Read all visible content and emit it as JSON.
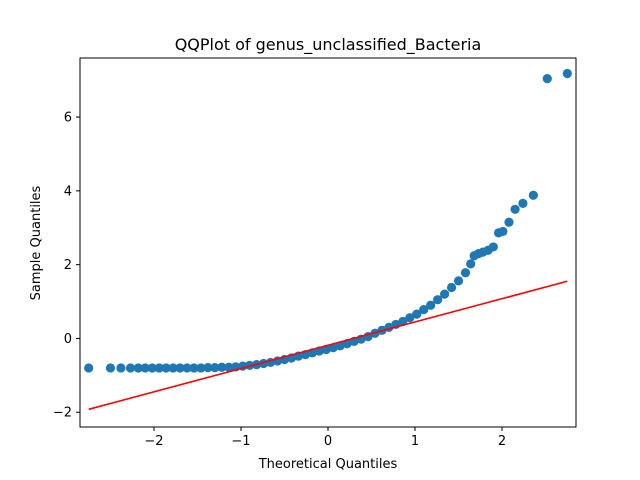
{
  "chart_data": {
    "type": "scatter",
    "title": "QQPlot of genus_unclassified_Bacteria",
    "xlabel": "Theoretical Quantiles",
    "ylabel": "Sample Quantiles",
    "xlim": [
      -2.85,
      2.85
    ],
    "ylim": [
      -2.4,
      7.6
    ],
    "xticks": [
      -2,
      -1,
      0,
      1,
      2
    ],
    "yticks": [
      -2,
      0,
      2,
      4,
      6
    ],
    "grid": false,
    "legend": "none",
    "series": [
      {
        "kind": "points",
        "color": "#1f77b4",
        "points": [
          [
            -2.75,
            -0.8
          ],
          [
            -2.5,
            -0.8
          ],
          [
            -2.38,
            -0.8
          ],
          [
            -2.27,
            -0.8
          ],
          [
            -2.18,
            -0.8
          ],
          [
            -2.1,
            -0.8
          ],
          [
            -2.02,
            -0.8
          ],
          [
            -1.94,
            -0.8
          ],
          [
            -1.86,
            -0.8
          ],
          [
            -1.78,
            -0.8
          ],
          [
            -1.7,
            -0.8
          ],
          [
            -1.62,
            -0.8
          ],
          [
            -1.54,
            -0.8
          ],
          [
            -1.46,
            -0.8
          ],
          [
            -1.38,
            -0.79
          ],
          [
            -1.3,
            -0.79
          ],
          [
            -1.22,
            -0.78
          ],
          [
            -1.14,
            -0.78
          ],
          [
            -1.06,
            -0.77
          ],
          [
            -0.98,
            -0.75
          ],
          [
            -0.9,
            -0.73
          ],
          [
            -0.82,
            -0.71
          ],
          [
            -0.74,
            -0.68
          ],
          [
            -0.66,
            -0.65
          ],
          [
            -0.58,
            -0.61
          ],
          [
            -0.5,
            -0.57
          ],
          [
            -0.42,
            -0.53
          ],
          [
            -0.34,
            -0.48
          ],
          [
            -0.26,
            -0.44
          ],
          [
            -0.18,
            -0.39
          ],
          [
            -0.1,
            -0.34
          ],
          [
            -0.02,
            -0.3
          ],
          [
            0.06,
            -0.25
          ],
          [
            0.14,
            -0.2
          ],
          [
            0.22,
            -0.14
          ],
          [
            0.3,
            -0.08
          ],
          [
            0.38,
            -0.02
          ],
          [
            0.46,
            0.05
          ],
          [
            0.54,
            0.14
          ],
          [
            0.62,
            0.22
          ],
          [
            0.7,
            0.3
          ],
          [
            0.78,
            0.38
          ],
          [
            0.86,
            0.46
          ],
          [
            0.94,
            0.56
          ],
          [
            1.02,
            0.66
          ],
          [
            1.1,
            0.78
          ],
          [
            1.18,
            0.9
          ],
          [
            1.26,
            1.05
          ],
          [
            1.34,
            1.2
          ],
          [
            1.42,
            1.38
          ],
          [
            1.5,
            1.56
          ],
          [
            1.58,
            1.78
          ],
          [
            1.64,
            2.02
          ],
          [
            1.68,
            2.24
          ],
          [
            1.73,
            2.3
          ],
          [
            1.78,
            2.34
          ],
          [
            1.84,
            2.39
          ],
          [
            1.9,
            2.48
          ],
          [
            1.96,
            2.86
          ],
          [
            2.01,
            2.9
          ],
          [
            2.08,
            3.15
          ],
          [
            2.15,
            3.5
          ],
          [
            2.24,
            3.66
          ],
          [
            2.36,
            3.88
          ],
          [
            2.52,
            7.04
          ],
          [
            2.75,
            7.18
          ]
        ]
      },
      {
        "kind": "line",
        "color": "#ff0000",
        "points": [
          [
            -2.75,
            -1.92
          ],
          [
            2.75,
            1.55
          ]
        ]
      }
    ]
  }
}
